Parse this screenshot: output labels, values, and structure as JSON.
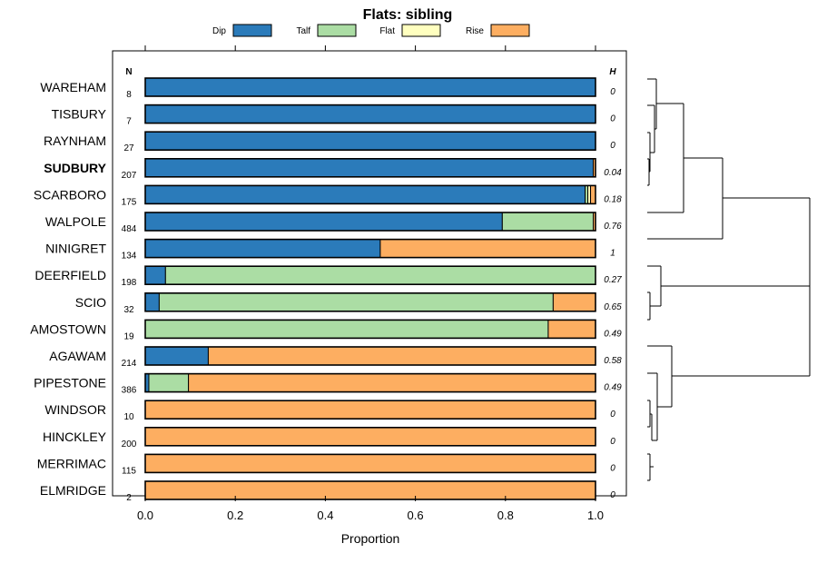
{
  "chart_data": {
    "type": "bar",
    "orientation": "horizontal-stacked",
    "title": "Flats: sibling",
    "xlabel": "Proportion",
    "xlim": [
      0,
      1
    ],
    "xticks": [
      "0.0",
      "0.2",
      "0.4",
      "0.6",
      "0.8",
      "1.0"
    ],
    "n_header": "N",
    "h_header": "H",
    "highlight": "SUDBURY",
    "legend": [
      {
        "name": "Dip",
        "color": "#2b7bba"
      },
      {
        "name": "Talf",
        "color": "#abdda4"
      },
      {
        "name": "Flat",
        "color": "#ffffbf"
      },
      {
        "name": "Rise",
        "color": "#fdae61"
      }
    ],
    "categories": [
      "WAREHAM",
      "TISBURY",
      "RAYNHAM",
      "SUDBURY",
      "SCARBORO",
      "WALPOLE",
      "NINIGRET",
      "DEERFIELD",
      "SCIO",
      "AMOSTOWN",
      "AGAWAM",
      "PIPESTONE",
      "WINDSOR",
      "HINCKLEY",
      "MERRIMAC",
      "ELMRIDGE"
    ],
    "n": [
      "8",
      "7",
      "27",
      "207",
      "175",
      "484",
      "134",
      "198",
      "32",
      "19",
      "214",
      "386",
      "10",
      "200",
      "115",
      "2"
    ],
    "h": [
      "0",
      "0",
      "0",
      "0.04",
      "0.18",
      "0.76",
      "1",
      "0.27",
      "0.65",
      "0.49",
      "0.58",
      "0.49",
      "0",
      "0",
      "0",
      "0"
    ],
    "series": [
      {
        "name": "Dip",
        "values": [
          1,
          1,
          1,
          0.995,
          0.977,
          0.793,
          0.522,
          0.045,
          0.031,
          0,
          0.14,
          0.008,
          0,
          0,
          0,
          0
        ]
      },
      {
        "name": "Talf",
        "values": [
          0,
          0,
          0,
          0,
          0.006,
          0.202,
          0,
          0.955,
          0.875,
          0.895,
          0,
          0.088,
          0,
          0,
          0,
          0
        ]
      },
      {
        "name": "Flat",
        "values": [
          0,
          0,
          0,
          0,
          0.006,
          0,
          0,
          0,
          0,
          0,
          0,
          0,
          0,
          0,
          0,
          0
        ]
      },
      {
        "name": "Rise",
        "values": [
          0,
          0,
          0,
          0.005,
          0.011,
          0.005,
          0.478,
          0,
          0.094,
          0.105,
          0.86,
          0.904,
          1,
          1,
          1,
          1
        ]
      }
    ]
  }
}
